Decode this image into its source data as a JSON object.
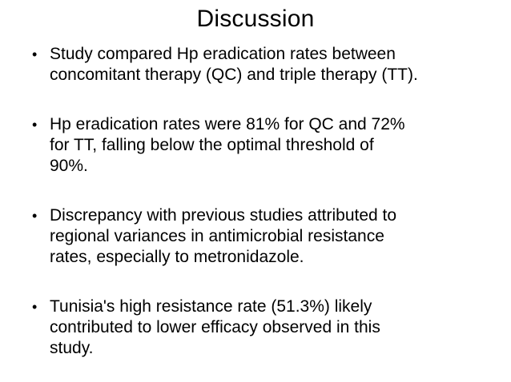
{
  "slide": {
    "title": "Discussion",
    "bullet_glyph": "•",
    "bullets": [
      {
        "lines": [
          "Study compared Hp eradication rates between",
          "concomitant therapy (QC) and triple therapy (TT)."
        ]
      },
      {
        "lines": [
          "Hp eradication rates were 81% for QC and 72%",
          "for TT, falling below the optimal threshold of",
          "90%."
        ]
      },
      {
        "lines": [
          "Discrepancy with previous studies attributed to",
          "regional variances in antimicrobial resistance",
          "rates, especially to metronidazole."
        ]
      },
      {
        "lines": [
          "Tunisia's high resistance rate (51.3%) likely",
          "contributed to lower efficacy observed in this",
          "study."
        ]
      }
    ],
    "colors": {
      "background": "#ffffff",
      "text": "#000000"
    }
  }
}
